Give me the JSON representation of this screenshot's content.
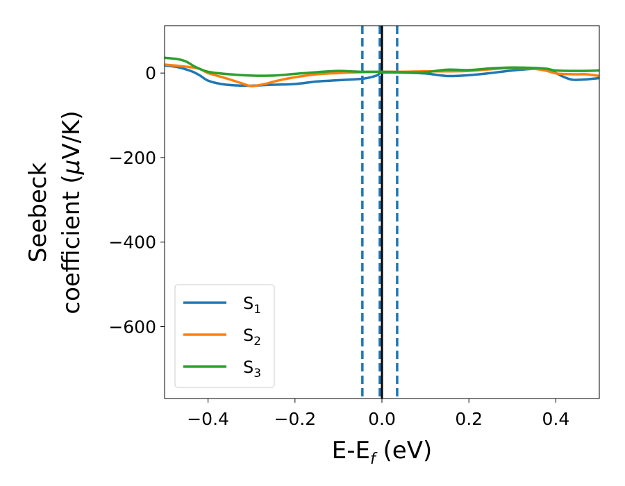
{
  "chart_data": {
    "type": "line",
    "xlabel": "E-E",
    "xlabel_sub": "f",
    "xlabel_unit": " (eV)",
    "ylabel_line1": "Seebeck",
    "ylabel_line2_pre": "coefficient  (",
    "ylabel_mu": "μ",
    "ylabel_line2_post": "V/K)",
    "xlim": [
      -0.5,
      0.5
    ],
    "ylim": [
      -770,
      112
    ],
    "xticks": [
      -0.4,
      -0.2,
      0.0,
      0.2,
      0.4
    ],
    "xtick_labels": [
      "−0.4",
      "−0.2",
      "0.0",
      "0.2",
      "0.4"
    ],
    "yticks": [
      0,
      -200,
      -400,
      -600
    ],
    "ytick_labels": [
      "0",
      "−200",
      "−400",
      "−600"
    ],
    "grid": false,
    "legend_position": "lower-left",
    "vlines": [
      {
        "x": -0.045,
        "style": "dashed",
        "color": "#1f77b4"
      },
      {
        "x": -0.005,
        "style": "dashed",
        "color": "#1f77b4"
      },
      {
        "x": 0.035,
        "style": "dashed",
        "color": "#1f77b4"
      },
      {
        "x": 0.0,
        "style": "solid",
        "color": "#000000"
      }
    ],
    "series": [
      {
        "name": "S",
        "sub": "1",
        "color": "#1f77b4",
        "x": [
          -0.5,
          -0.47,
          -0.44,
          -0.42,
          -0.4,
          -0.37,
          -0.34,
          -0.3,
          -0.26,
          -0.2,
          -0.15,
          -0.1,
          -0.05,
          -0.03,
          -0.01,
          0.0,
          0.05,
          0.1,
          0.15,
          0.2,
          0.25,
          0.3,
          0.35,
          0.38,
          0.4,
          0.42,
          0.44,
          0.47,
          0.5
        ],
        "y": [
          18,
          14,
          5,
          -5,
          -18,
          -26,
          -29,
          -30,
          -28,
          -26,
          -20,
          -17,
          -14,
          -11,
          -5,
          1,
          1,
          -1,
          -7,
          -5,
          0,
          6,
          10,
          8,
          0,
          -10,
          -16,
          -15,
          -12
        ]
      },
      {
        "name": "S",
        "sub": "2",
        "color": "#ff7f0e",
        "x": [
          -0.5,
          -0.45,
          -0.42,
          -0.4,
          -0.36,
          -0.32,
          -0.3,
          -0.27,
          -0.24,
          -0.2,
          -0.15,
          -0.1,
          -0.05,
          0.0,
          0.05,
          0.1,
          0.15,
          0.2,
          0.25,
          0.3,
          0.35,
          0.38,
          0.4,
          0.44,
          0.47,
          0.5
        ],
        "y": [
          20,
          15,
          10,
          0,
          -12,
          -25,
          -31,
          -26,
          -18,
          -10,
          -3,
          0,
          2,
          3,
          3,
          4,
          4,
          5,
          9,
          12,
          10,
          5,
          -1,
          -3,
          -3,
          -7
        ]
      },
      {
        "name": "S",
        "sub": "3",
        "color": "#2ca02c",
        "x": [
          -0.5,
          -0.47,
          -0.45,
          -0.43,
          -0.4,
          -0.35,
          -0.3,
          -0.25,
          -0.2,
          -0.15,
          -0.1,
          -0.05,
          0.0,
          0.05,
          0.1,
          0.15,
          0.2,
          0.25,
          0.3,
          0.35,
          0.38,
          0.4,
          0.45,
          0.5
        ],
        "y": [
          36,
          33,
          27,
          15,
          3,
          -3,
          -6,
          -6,
          -2,
          2,
          5,
          3,
          3,
          2,
          2,
          8,
          7,
          11,
          13,
          12,
          10,
          6,
          5,
          6
        ]
      }
    ]
  }
}
